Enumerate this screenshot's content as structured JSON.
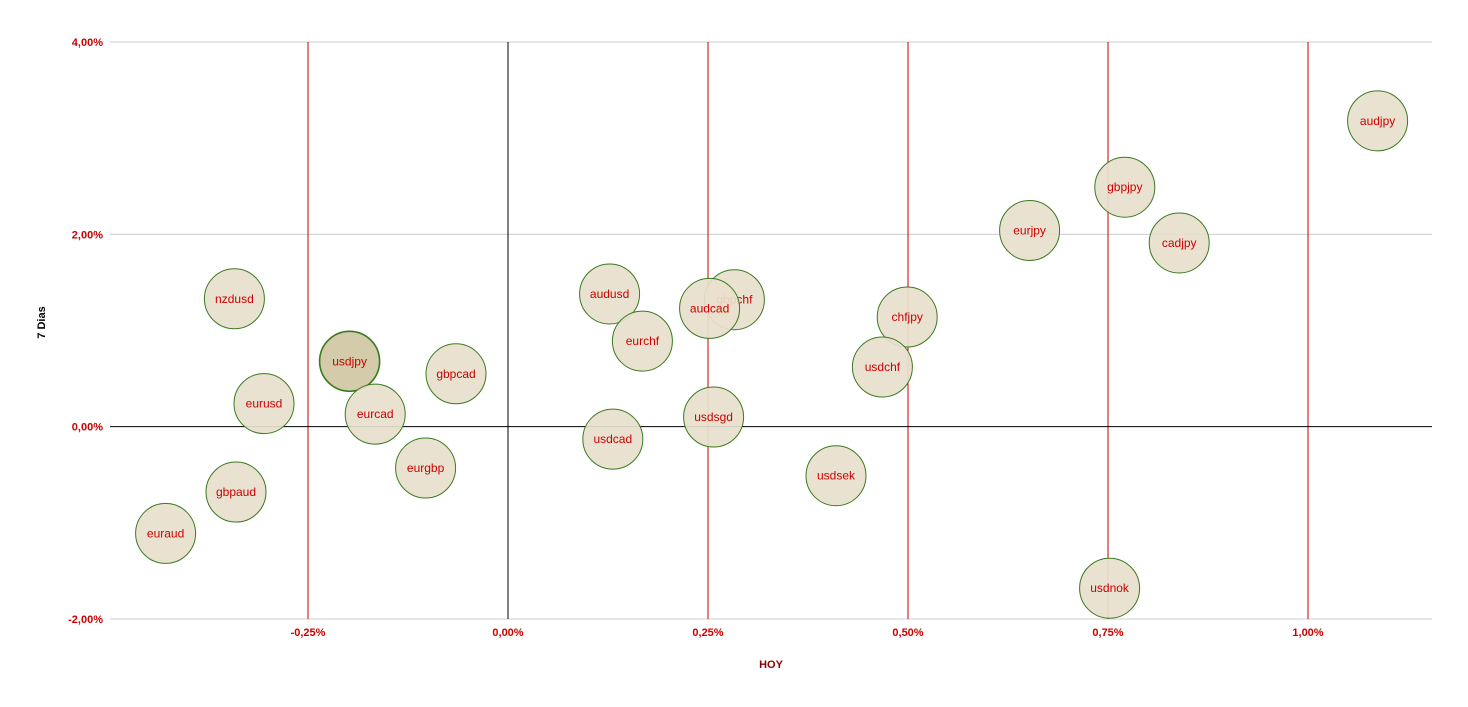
{
  "colors": {
    "tick_text": "#cc0000",
    "bubble_label": "#cc0000",
    "bubble_fill": "#e8e0cc",
    "bubble_fill_highlight": "#cfc7a2",
    "bubble_stroke": "#3a7a1f",
    "gridline": "#cccccc",
    "red_line": "#cc0000",
    "zero_line": "#000000",
    "ylabel": "#000000",
    "xlabel": "#880000"
  },
  "chart_data": {
    "type": "scatter",
    "title": "",
    "xlabel": "HOY",
    "ylabel": "7 Dias",
    "xlim": [
      -0.00505,
      0.01155
    ],
    "ylim": [
      -0.02,
      0.04
    ],
    "x_ticks": [
      {
        "value": -0.0025,
        "label": "-0,25%"
      },
      {
        "value": 0.0,
        "label": "0,00%"
      },
      {
        "value": 0.0025,
        "label": "0,25%"
      },
      {
        "value": 0.005,
        "label": "0,50%"
      },
      {
        "value": 0.0075,
        "label": "0,75%"
      },
      {
        "value": 0.01,
        "label": "1,00%"
      }
    ],
    "y_ticks": [
      {
        "value": 0.04,
        "label": "4,00%"
      },
      {
        "value": 0.02,
        "label": "2,00%"
      },
      {
        "value": 0.0,
        "label": "0,00%"
      },
      {
        "value": -0.02,
        "label": "-2,00%"
      }
    ],
    "grid": true,
    "legend": "none",
    "points": [
      {
        "label": "audjpy",
        "x": 0.01087,
        "y": 0.0318
      },
      {
        "label": "gbpjpy",
        "x": 0.00771,
        "y": 0.0249
      },
      {
        "label": "cadjpy",
        "x": 0.00839,
        "y": 0.0191
      },
      {
        "label": "eurjpy",
        "x": 0.00652,
        "y": 0.0204
      },
      {
        "label": "nzdusd",
        "x": -0.00342,
        "y": 0.0133
      },
      {
        "label": "audusd",
        "x": 0.00127,
        "y": 0.0138
      },
      {
        "label": "gbpchf",
        "x": 0.00283,
        "y": 0.0132
      },
      {
        "label": "audcad",
        "x": 0.00252,
        "y": 0.0123
      },
      {
        "label": "chfjpy",
        "x": 0.00499,
        "y": 0.0114
      },
      {
        "label": "eurchf",
        "x": 0.00168,
        "y": 0.0089
      },
      {
        "label": "usdjpy",
        "x": -0.00198,
        "y": 0.0068,
        "highlight": true
      },
      {
        "label": "usdchf",
        "x": 0.00468,
        "y": 0.0062
      },
      {
        "label": "gbpcad",
        "x": -0.00065,
        "y": 0.0055
      },
      {
        "label": "eurusd",
        "x": -0.00305,
        "y": 0.0024
      },
      {
        "label": "eurcad",
        "x": -0.00166,
        "y": 0.0013
      },
      {
        "label": "usdsgd",
        "x": 0.00257,
        "y": 0.001
      },
      {
        "label": "usdcad",
        "x": 0.00131,
        "y": -0.0013
      },
      {
        "label": "eurgbp",
        "x": -0.00103,
        "y": -0.0043
      },
      {
        "label": "usdsek",
        "x": 0.0041,
        "y": -0.0051
      },
      {
        "label": "gbpaud",
        "x": -0.0034,
        "y": -0.0068
      },
      {
        "label": "euraud",
        "x": -0.00428,
        "y": -0.0111
      },
      {
        "label": "usdnok",
        "x": 0.00752,
        "y": -0.0168
      }
    ]
  }
}
